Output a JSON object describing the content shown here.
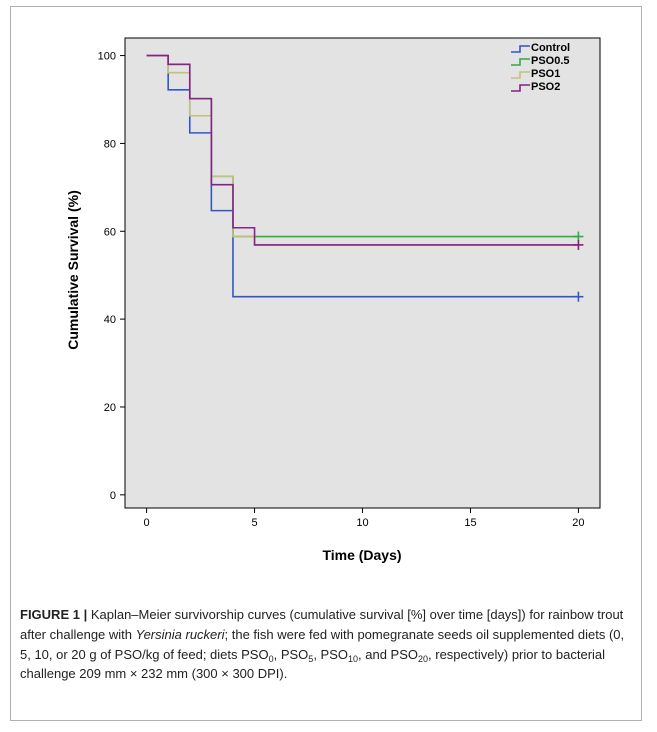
{
  "chart_data": {
    "type": "line",
    "subtype": "step",
    "xlabel": "Time (Days)",
    "ylabel": "Cumulative Survival (%)",
    "xlim": [
      -1,
      21
    ],
    "ylim": [
      -3,
      104
    ],
    "xticks": [
      0,
      5,
      10,
      15,
      20
    ],
    "yticks": [
      0,
      20,
      40,
      60,
      80,
      100
    ],
    "grid": false,
    "legend_position": "top-right",
    "background": "#e3e3e3",
    "series": [
      {
        "name": "Control",
        "color": "#3355cc",
        "x": [
          0,
          1,
          2,
          3,
          4,
          20
        ],
        "y": [
          100,
          92.2,
          82.4,
          64.7,
          45.1,
          45.1
        ],
        "censored_x": 20
      },
      {
        "name": "PSO0.5",
        "color": "#33aa44",
        "x": [
          0,
          1,
          2,
          3,
          4,
          20
        ],
        "y": [
          100,
          98,
          90.2,
          72.5,
          58.8,
          58.8
        ],
        "censored_x": 20
      },
      {
        "name": "PSO1",
        "color": "#c2c27a",
        "x": [
          0,
          1,
          2,
          3,
          4,
          5,
          20
        ],
        "y": [
          100,
          96.1,
          86.3,
          72.5,
          58.8,
          56.9,
          56.9
        ],
        "censored_x": 20
      },
      {
        "name": "PSO2",
        "color": "#882288",
        "x": [
          0,
          1,
          2,
          3,
          4,
          5,
          20
        ],
        "y": [
          100,
          98,
          90.2,
          70.6,
          60.8,
          56.9,
          56.9
        ],
        "censored_x": 20
      }
    ]
  },
  "caption": {
    "label": "FIGURE 1 |",
    "text1": " Kaplan–Meier survivorship curves (cumulative survival [%] over time [days]) for rainbow trout after challenge with ",
    "italic": "Yersinia ruckeri",
    "text2": "; the fish were fed with pomegranate seeds oil supplemented diets (0, 5, 10, or 20 g of PSO/kg of feed; diets PSO",
    "sub1": "0",
    "sep1": ", PSO",
    "sub2": "5",
    "sep2": ", PSO",
    "sub3": "10",
    "sep3": ", and PSO",
    "sub4": "20",
    "text3": ", respectively) prior to bacterial challenge 209 mm × 232 mm (300 × 300 DPI)."
  }
}
